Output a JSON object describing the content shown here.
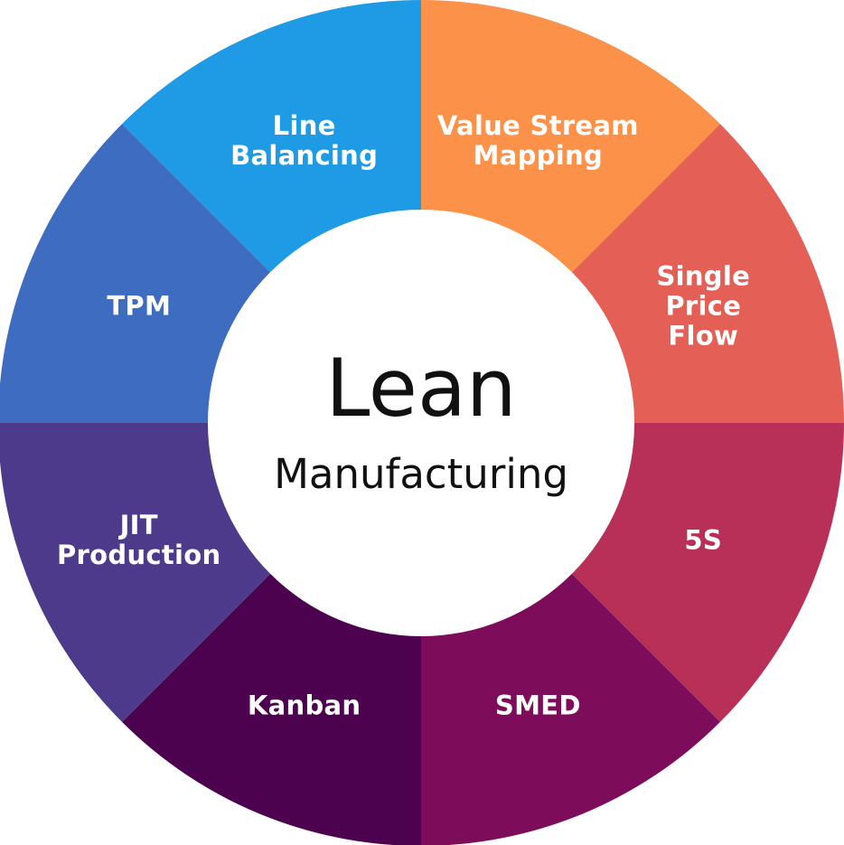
{
  "center": {
    "title": "Lean",
    "subtitle": "Manufacturing"
  },
  "segments": [
    {
      "label": "Value Stream Mapping",
      "color": "#fc914a"
    },
    {
      "label": "Single Price Flow",
      "color": "#e45f55"
    },
    {
      "label": "5S",
      "color": "#b83058"
    },
    {
      "label": "SMED",
      "color": "#7d0c5a"
    },
    {
      "label": "Kanban",
      "color": "#4d024f"
    },
    {
      "label": "JIT Production",
      "color": "#4e3a8a"
    },
    {
      "label": "TPM",
      "color": "#3d6cc1"
    },
    {
      "label": "Line Balancing",
      "color": "#1e9be4"
    }
  ]
}
